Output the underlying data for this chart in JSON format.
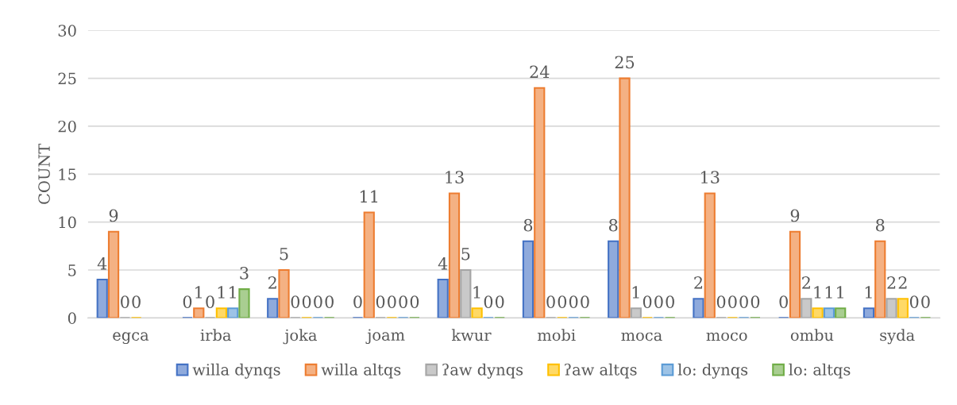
{
  "chart_data": {
    "type": "bar",
    "ylabel": "COUNT",
    "categories": [
      "egca",
      "irba",
      "joka",
      "joam",
      "kwur",
      "mobi",
      "moca",
      "moco",
      "ombu",
      "syda"
    ],
    "series": [
      {
        "name": "willa dynqs",
        "color": "#4472c4",
        "values": [
          4,
          0,
          2,
          0,
          4,
          8,
          8,
          2,
          0,
          1
        ]
      },
      {
        "name": "willa altqs",
        "color": "#ed7d31",
        "values": [
          9,
          1,
          5,
          11,
          13,
          24,
          25,
          13,
          9,
          8
        ]
      },
      {
        "name": "ʔaw dynqs",
        "color": "#a5a5a5",
        "values": [
          0,
          0,
          0,
          0,
          5,
          0,
          1,
          0,
          2,
          2
        ]
      },
      {
        "name": "ʔaw altqs",
        "color": "#ffc000",
        "values": [
          0,
          1,
          0,
          0,
          1,
          0,
          0,
          0,
          1,
          2
        ]
      },
      {
        "name": "lo: dynqs",
        "color": "#5b9bd5",
        "values": [
          null,
          1,
          0,
          0,
          0,
          0,
          0,
          0,
          1,
          0
        ]
      },
      {
        "name": "lo: altqs",
        "color": "#70ad47",
        "values": [
          null,
          3,
          0,
          0,
          0,
          0,
          0,
          0,
          1,
          0
        ]
      }
    ],
    "ylim": [
      0,
      30
    ],
    "yticks": [
      0,
      5,
      10,
      15,
      20,
      25,
      30
    ],
    "grid": "y",
    "legend": "bottom",
    "data_labels": true
  }
}
